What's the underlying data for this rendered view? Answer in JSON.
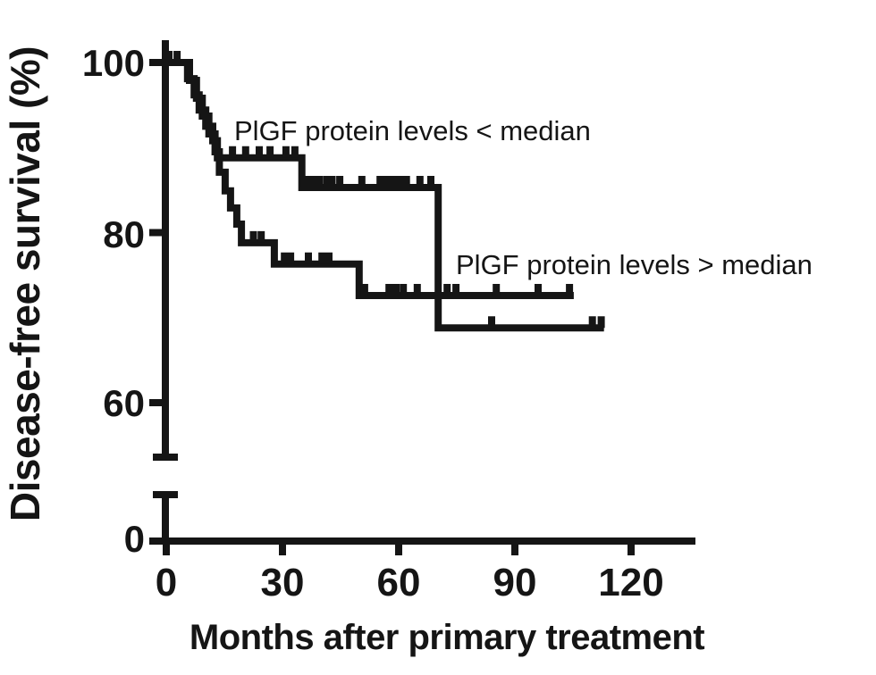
{
  "figure": {
    "background": "#ffffff",
    "ink_color": "#151515"
  },
  "chart_data": {
    "type": "line",
    "subtype": "kaplan-meier-step",
    "title": "",
    "xlabel": "Months after primary treatment",
    "ylabel": "Disease-free survival (%)",
    "xlim": [
      0,
      136
    ],
    "ylim": [
      0,
      105
    ],
    "y_axis_break": "axis broken between 0 and ~55",
    "grid": false,
    "legend_position": "inline-annotations",
    "x_axis": {
      "ticks": [
        {
          "value": 0,
          "label": "0"
        },
        {
          "value": 30,
          "label": "30"
        },
        {
          "value": 60,
          "label": "60"
        },
        {
          "value": 90,
          "label": "90"
        },
        {
          "value": 120,
          "label": "120"
        }
      ]
    },
    "y_axis": {
      "ticks": [
        {
          "value": 100,
          "label": "100"
        },
        {
          "value": 80,
          "label": "80"
        },
        {
          "value": 60,
          "label": "60"
        },
        {
          "value": 0,
          "label": "0"
        }
      ]
    },
    "series": [
      {
        "name": "PlGF protein levels < median",
        "points": [
          [
            0,
            100
          ],
          [
            5.5,
            100
          ],
          [
            5.5,
            98.1
          ],
          [
            7.2,
            98.1
          ],
          [
            7.2,
            96.2
          ],
          [
            8.5,
            96.2
          ],
          [
            8.5,
            94.4
          ],
          [
            10.2,
            94.4
          ],
          [
            10.2,
            92.5
          ],
          [
            12,
            92.5
          ],
          [
            12,
            90.8
          ],
          [
            13.2,
            90.8
          ],
          [
            13.2,
            88.8
          ],
          [
            35,
            88.8
          ],
          [
            35,
            85.3
          ],
          [
            70.2,
            85.3
          ],
          [
            70.2,
            68.8
          ],
          [
            113,
            68.8
          ]
        ],
        "censor_marks": [
          [
            0.7,
            100
          ],
          [
            2.8,
            100
          ],
          [
            17.1,
            88.8
          ],
          [
            20.5,
            88.8
          ],
          [
            24,
            88.8
          ],
          [
            26.8,
            88.8
          ],
          [
            30.9,
            88.8
          ],
          [
            33.2,
            88.8
          ],
          [
            35.6,
            85.3
          ],
          [
            36.9,
            85.3
          ],
          [
            38.2,
            85.3
          ],
          [
            39.5,
            85.3
          ],
          [
            41.4,
            85.3
          ],
          [
            42.8,
            85.3
          ],
          [
            44.8,
            85.3
          ],
          [
            50.5,
            85.3
          ],
          [
            55.2,
            85.3
          ],
          [
            56.8,
            85.3
          ],
          [
            58.6,
            85.3
          ],
          [
            60.2,
            85.3
          ],
          [
            62,
            85.3
          ],
          [
            65.5,
            85.3
          ],
          [
            68.3,
            85.3
          ],
          [
            84,
            68.8
          ],
          [
            110,
            68.8
          ],
          [
            112.3,
            68.8
          ]
        ]
      },
      {
        "name": "PlGF protein levels > median",
        "points": [
          [
            0,
            100
          ],
          [
            6,
            100
          ],
          [
            6,
            97.9
          ],
          [
            7.8,
            97.9
          ],
          [
            7.8,
            95.8
          ],
          [
            9.3,
            95.8
          ],
          [
            9.3,
            93.7
          ],
          [
            11,
            93.7
          ],
          [
            11,
            91.6
          ],
          [
            12.6,
            91.6
          ],
          [
            12.6,
            89.5
          ],
          [
            13.7,
            89.5
          ],
          [
            13.7,
            87.1
          ],
          [
            15.2,
            87.1
          ],
          [
            15.2,
            84.9
          ],
          [
            16.6,
            84.9
          ],
          [
            16.6,
            82.9
          ],
          [
            18.2,
            82.9
          ],
          [
            18.2,
            81
          ],
          [
            19.4,
            81
          ],
          [
            19.4,
            78.8
          ],
          [
            27.9,
            78.8
          ],
          [
            27.9,
            76.3
          ],
          [
            49.8,
            76.3
          ],
          [
            49.8,
            72.6
          ],
          [
            105.2,
            72.6
          ]
        ],
        "censor_marks": [
          [
            22.5,
            78.8
          ],
          [
            24.5,
            78.8
          ],
          [
            30.5,
            76.3
          ],
          [
            32.1,
            76.3
          ],
          [
            36.7,
            76.3
          ],
          [
            40.2,
            76.3
          ],
          [
            42,
            76.3
          ],
          [
            51.2,
            72.6
          ],
          [
            57.5,
            72.6
          ],
          [
            59.3,
            72.6
          ],
          [
            61.2,
            72.6
          ],
          [
            64.8,
            72.6
          ],
          [
            72.5,
            72.6
          ],
          [
            74.8,
            72.6
          ],
          [
            85.2,
            72.6
          ],
          [
            96,
            72.6
          ],
          [
            104.1,
            72.6
          ]
        ]
      }
    ]
  }
}
